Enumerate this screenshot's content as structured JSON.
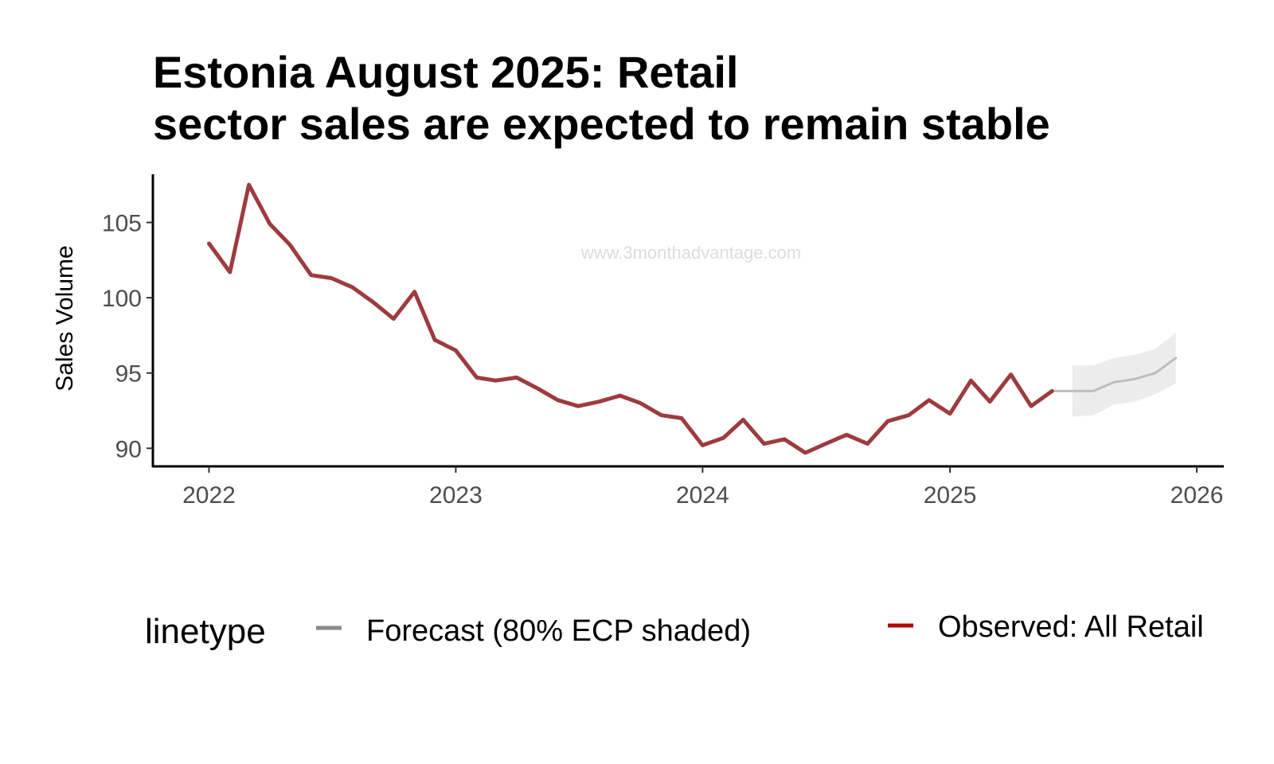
{
  "chart_data": {
    "type": "line",
    "title": [
      "Estonia August 2025: Retail",
      "sector sales are expected to remain stable"
    ],
    "xlabel": "",
    "ylabel": "Sales Volume",
    "watermark": "www.3monthadvantage.com",
    "xlim": [
      "2021-10-10",
      "2026-02-10"
    ],
    "ylim": [
      88.8,
      108.2
    ],
    "x_ticks": [
      "2022-01-01",
      "2023-01-01",
      "2024-01-01",
      "2025-01-01",
      "2026-01-01"
    ],
    "x_tick_labels": [
      "2022",
      "2023",
      "2024",
      "2025",
      "2026"
    ],
    "y_ticks": [
      90,
      95,
      100,
      105
    ],
    "grid": false,
    "legend": {
      "title": "linetype",
      "position": "bottom",
      "entries": [
        {
          "label": "Forecast (80% ECP shaded)",
          "color": "#888888"
        },
        {
          "label": "Observed: All Retail",
          "color": "#b30000"
        }
      ]
    },
    "series": [
      {
        "name": "Observed: All Retail",
        "color": "#9e3b3f",
        "x": [
          "2022-01-01",
          "2022-02-01",
          "2022-03-01",
          "2022-04-01",
          "2022-05-01",
          "2022-06-01",
          "2022-07-01",
          "2022-08-01",
          "2022-09-01",
          "2022-10-01",
          "2022-11-01",
          "2022-12-01",
          "2023-01-01",
          "2023-02-01",
          "2023-03-01",
          "2023-04-01",
          "2023-05-01",
          "2023-06-01",
          "2023-07-01",
          "2023-08-01",
          "2023-09-01",
          "2023-10-01",
          "2023-11-01",
          "2023-12-01",
          "2024-01-01",
          "2024-02-01",
          "2024-03-01",
          "2024-04-01",
          "2024-05-01",
          "2024-06-01",
          "2024-07-01",
          "2024-08-01",
          "2024-09-01",
          "2024-10-01",
          "2024-11-01",
          "2024-12-01",
          "2025-01-01",
          "2025-02-01",
          "2025-03-01",
          "2025-04-01",
          "2025-05-01",
          "2025-06-01"
        ],
        "y": [
          103.6,
          101.7,
          107.5,
          104.9,
          103.5,
          101.5,
          101.3,
          100.7,
          99.7,
          98.6,
          100.4,
          97.2,
          96.5,
          94.7,
          94.5,
          94.7,
          94.0,
          93.2,
          92.8,
          93.1,
          93.5,
          93.0,
          92.2,
          92.0,
          90.2,
          90.7,
          91.9,
          90.3,
          90.6,
          89.7,
          90.3,
          90.9,
          90.3,
          91.8,
          92.2,
          93.2,
          92.3,
          94.5,
          93.1,
          94.9,
          92.8,
          93.8
        ]
      },
      {
        "name": "Forecast (80% ECP shaded)",
        "color": "#bdbdbd",
        "x": [
          "2025-06-01",
          "2025-07-01",
          "2025-08-01",
          "2025-09-01",
          "2025-10-01",
          "2025-11-01",
          "2025-12-01"
        ],
        "y": [
          93.8,
          93.8,
          93.8,
          94.4,
          94.6,
          95.0,
          96.0
        ],
        "lower": [
          null,
          92.1,
          92.2,
          92.9,
          93.1,
          93.6,
          94.3
        ],
        "upper": [
          null,
          95.5,
          95.5,
          96.0,
          96.2,
          96.6,
          97.7
        ],
        "band_color": "#ececec"
      }
    ]
  }
}
